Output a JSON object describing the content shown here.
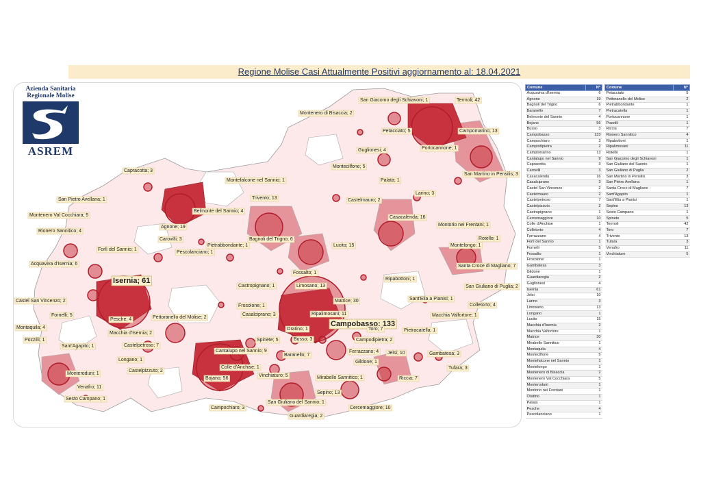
{
  "title": "Regione Molise Casi Attualmente Positivi aggiornamento al: 18.04.2021",
  "logo": {
    "line1": "Azienda Sanitaria",
    "line2": "Regionale Molise",
    "acronym": "ASREM",
    "color": "#1f3a6a"
  },
  "colors": {
    "high": "#c8323e",
    "mid": "#e07f88",
    "low": "#f2c2c6",
    "zero": "#ffffff",
    "header": "#3d5fa8",
    "callout": "#fbeecb"
  },
  "map_labels": [
    {
      "text": "San Giacomo degli Schiavoni; 1"
    },
    {
      "text": "Termoli; 42"
    },
    {
      "text": "Montenero di Bisaccia; 2"
    },
    {
      "text": "Petacciato; 5"
    },
    {
      "text": "Campomarino; 13"
    },
    {
      "text": "Guglionesi; 4"
    },
    {
      "text": "Portocannone; 1"
    },
    {
      "text": "Montecilfone; 5"
    },
    {
      "text": "Palata; 1"
    },
    {
      "text": "San Martino in Pensilis; 3"
    },
    {
      "text": "Capracotta; 3"
    },
    {
      "text": "Montefalcone nel Sannio; 1"
    },
    {
      "text": "Larino; 3"
    },
    {
      "text": "San Pietro Avellana; 1"
    },
    {
      "text": "Trivento; 13"
    },
    {
      "text": "Castelmauro; 2"
    },
    {
      "text": "Belmonte del Sannio; 4"
    },
    {
      "text": "Montenero Val Cocchiara; 5"
    },
    {
      "text": "Casacalenda; 16"
    },
    {
      "text": "Rionero Sannitico; 4"
    },
    {
      "text": "Agnone; 19"
    },
    {
      "text": "Montorio nei Frentani; 1"
    },
    {
      "text": "Carovilli; 3"
    },
    {
      "text": "Bagnoli del Trigno; 6"
    },
    {
      "text": "Rotello; 1"
    },
    {
      "text": "Forlì del Sannio; 1"
    },
    {
      "text": "Pietrabbondante; 1"
    },
    {
      "text": "Lucito; 15"
    },
    {
      "text": "Montelongo; 1"
    },
    {
      "text": "Pescolanciano; 1"
    },
    {
      "text": "Acquaviva d'Isernia; 6"
    },
    {
      "text": "Santa Croce di Magliano; 7"
    },
    {
      "text": "Fossalto; 1"
    },
    {
      "text": "Isernia; 61"
    },
    {
      "text": "Ripabottoni; 1"
    },
    {
      "text": "San Giuliano di Puglia; 2"
    },
    {
      "text": "Castropignano; 1"
    },
    {
      "text": "Limosano; 13"
    },
    {
      "text": "Castel San Vincenzo; 2"
    },
    {
      "text": "Sant'Elia a Pianisi; 1"
    },
    {
      "text": "Matrice; 30"
    },
    {
      "text": "Colletorto; 4"
    },
    {
      "text": "Frosolone; 1"
    },
    {
      "text": "Fornelli; 5"
    },
    {
      "text": "Ripalimosani; 11"
    },
    {
      "text": "Casalciprano; 3"
    },
    {
      "text": "Macchia Valfortore; 1"
    },
    {
      "text": "Pesche; 4"
    },
    {
      "text": "Pettoranello del Molise; 2"
    },
    {
      "text": "Campobasso; 133"
    },
    {
      "text": "Montaquila; 4"
    },
    {
      "text": "Toro; 7"
    },
    {
      "text": "Oratino; 1"
    },
    {
      "text": "Macchia d'Isernia; 2"
    },
    {
      "text": "Pietracatella; 1"
    },
    {
      "text": "Pozzilli; 1"
    },
    {
      "text": "Busso; 3"
    },
    {
      "text": "Campodipietra; 2"
    },
    {
      "text": "Spinete; 5"
    },
    {
      "text": "Sant'Agapito; 1"
    },
    {
      "text": "Castelpetroso; 7"
    },
    {
      "text": "Cantalupo nel Sannio; 9"
    },
    {
      "text": "Ferrazzano; 4"
    },
    {
      "text": "Jelsi; 10"
    },
    {
      "text": "Gambatesa; 3"
    },
    {
      "text": "Baranello; 7"
    },
    {
      "text": "Longano; 1"
    },
    {
      "text": "Gildone; 1"
    },
    {
      "text": "Tufara; 3"
    },
    {
      "text": "Monteroduni; 1"
    },
    {
      "text": "Castelpizzuto; 2"
    },
    {
      "text": "Colle d'Anchise; 1"
    },
    {
      "text": "Mirabello Sannitico; 1"
    },
    {
      "text": "Riccia; 7"
    },
    {
      "text": "Vinchiaturo; 5"
    },
    {
      "text": "Bojano; 56"
    },
    {
      "text": "Venafro; 11"
    },
    {
      "text": "Sepino; 13"
    },
    {
      "text": "Sesto Campano; 1"
    },
    {
      "text": "Campochiaro; 3"
    },
    {
      "text": "San Giuliano del Sannio; 1"
    },
    {
      "text": "Cercemaggiore; 10"
    },
    {
      "text": "Guardiaregia; 2"
    }
  ],
  "table_headers": {
    "comune": "Comune",
    "n": "N°"
  },
  "table_left": [
    {
      "comune": "Acquaviva d'Isernia",
      "n": "6"
    },
    {
      "comune": "Agnone",
      "n": "19"
    },
    {
      "comune": "Bagnoli del Trigno",
      "n": "6"
    },
    {
      "comune": "Baranello",
      "n": "7"
    },
    {
      "comune": "Belmonte del Sannio",
      "n": "4"
    },
    {
      "comune": "Bojano",
      "n": "56"
    },
    {
      "comune": "Busso",
      "n": "3"
    },
    {
      "comune": "Campobasso",
      "n": "133"
    },
    {
      "comune": "Campochiaro",
      "n": "3"
    },
    {
      "comune": "Campodipietra",
      "n": "2"
    },
    {
      "comune": "Campomarino",
      "n": "13"
    },
    {
      "comune": "Cantalupo nel Sannio",
      "n": "9"
    },
    {
      "comune": "Capracotta",
      "n": "3"
    },
    {
      "comune": "Carovilli",
      "n": "3"
    },
    {
      "comune": "Casacalenda",
      "n": "16"
    },
    {
      "comune": "Casalciprano",
      "n": "3"
    },
    {
      "comune": "Castel San Vincenzo",
      "n": "2"
    },
    {
      "comune": "Castelmauro",
      "n": "2"
    },
    {
      "comune": "Castelpetroso",
      "n": "7"
    },
    {
      "comune": "Castelpizzuto",
      "n": "2"
    },
    {
      "comune": "Castropignano",
      "n": "1"
    },
    {
      "comune": "Cercemaggiore",
      "n": "10"
    },
    {
      "comune": "Colle d'Anchise",
      "n": "1"
    },
    {
      "comune": "Colletorto",
      "n": "4"
    },
    {
      "comune": "Ferrazzano",
      "n": "4"
    },
    {
      "comune": "Forlì del Sannio",
      "n": "1"
    },
    {
      "comune": "Fornelli",
      "n": "5"
    },
    {
      "comune": "Fossalto",
      "n": "1"
    },
    {
      "comune": "Frosolone",
      "n": "1"
    },
    {
      "comune": "Gambatesa",
      "n": "3"
    },
    {
      "comune": "Gildone",
      "n": "1"
    },
    {
      "comune": "Guardiaregia",
      "n": "2"
    },
    {
      "comune": "Guglionesi",
      "n": "4"
    },
    {
      "comune": "Isernia",
      "n": "61"
    },
    {
      "comune": "Jelsi",
      "n": "10"
    },
    {
      "comune": "Larino",
      "n": "3"
    },
    {
      "comune": "Limosano",
      "n": "13"
    },
    {
      "comune": "Longano",
      "n": "1"
    },
    {
      "comune": "Lucito",
      "n": "15"
    },
    {
      "comune": "Macchia d'Isernia",
      "n": "2"
    },
    {
      "comune": "Macchia Valfortore",
      "n": "1"
    },
    {
      "comune": "Matrice",
      "n": "30"
    },
    {
      "comune": "Mirabello Sannitico",
      "n": "1"
    },
    {
      "comune": "Montaquila",
      "n": "4"
    },
    {
      "comune": "Montecilfone",
      "n": "5"
    },
    {
      "comune": "Montefalcone nel Sannio",
      "n": "1"
    },
    {
      "comune": "Montelongo",
      "n": "1"
    },
    {
      "comune": "Montenero di Bisaccia",
      "n": "2"
    },
    {
      "comune": "Montenero Val Cocchiara",
      "n": "5"
    },
    {
      "comune": "Monteroduni",
      "n": "1"
    },
    {
      "comune": "Montorio nei Frentani",
      "n": "1"
    },
    {
      "comune": "Oratino",
      "n": "1"
    },
    {
      "comune": "Palata",
      "n": "1"
    },
    {
      "comune": "Pesche",
      "n": "4"
    },
    {
      "comune": "Pescolanciano",
      "n": "1"
    }
  ],
  "table_right": [
    {
      "comune": "Petacciato",
      "n": "5"
    },
    {
      "comune": "Pettoranello del Molise",
      "n": "2"
    },
    {
      "comune": "Pietrabbondante",
      "n": "1"
    },
    {
      "comune": "Pietracatella",
      "n": "1"
    },
    {
      "comune": "Portocannone",
      "n": "1"
    },
    {
      "comune": "Pozzilli",
      "n": "1"
    },
    {
      "comune": "Riccia",
      "n": "7"
    },
    {
      "comune": "Rionero Sannitico",
      "n": "4"
    },
    {
      "comune": "Ripabottoni",
      "n": "1"
    },
    {
      "comune": "Ripalimosani",
      "n": "11"
    },
    {
      "comune": "Rotello",
      "n": "1"
    },
    {
      "comune": "San Giacomo degli Schiavoni",
      "n": "1"
    },
    {
      "comune": "San Giuliano del Sannio",
      "n": "1"
    },
    {
      "comune": "San Giuliano di Puglia",
      "n": "2"
    },
    {
      "comune": "San Martino in Pensilis",
      "n": "3"
    },
    {
      "comune": "San Pietro Avellana",
      "n": "1"
    },
    {
      "comune": "Santa Croce di Magliano",
      "n": "7"
    },
    {
      "comune": "Sant'Agapito",
      "n": "1"
    },
    {
      "comune": "Sant'Elia a Pianisi",
      "n": "1"
    },
    {
      "comune": "Sepino",
      "n": "13"
    },
    {
      "comune": "Sesto Campano",
      "n": "1"
    },
    {
      "comune": "Spinete",
      "n": "5"
    },
    {
      "comune": "Termoli",
      "n": "42"
    },
    {
      "comune": "Toro",
      "n": "7"
    },
    {
      "comune": "Trivento",
      "n": "13"
    },
    {
      "comune": "Tufara",
      "n": "3"
    },
    {
      "comune": "Venafro",
      "n": "11"
    },
    {
      "comune": "Vinchiaturo",
      "n": "5"
    }
  ]
}
